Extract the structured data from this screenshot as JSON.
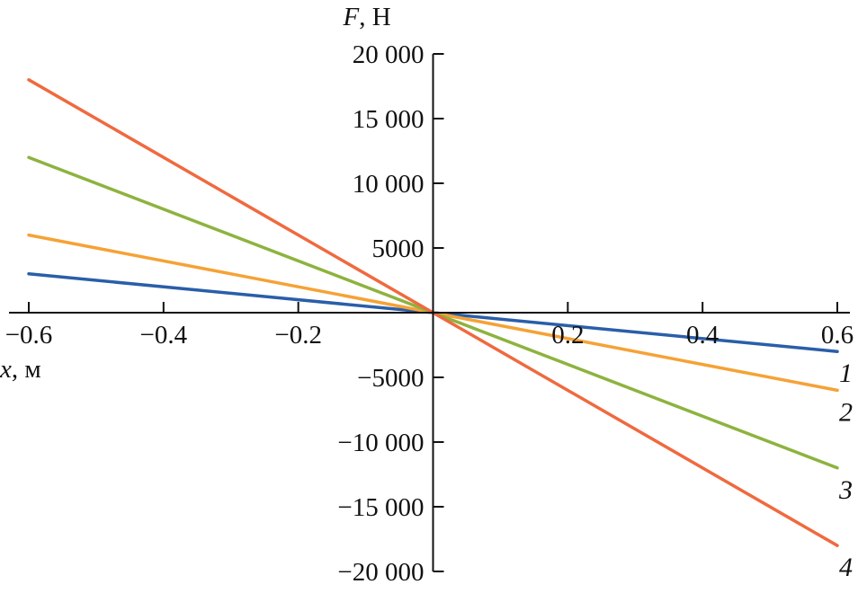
{
  "chart_data": {
    "type": "line",
    "xlabel": {
      "var": "x",
      "unit": ", м"
    },
    "ylabel": {
      "var": "F",
      "unit": ", Н"
    },
    "xlim": [
      -0.6,
      0.6
    ],
    "ylim": [
      -20000,
      20000
    ],
    "x_ticks": [
      -0.6,
      -0.4,
      -0.2,
      0.2,
      0.4,
      0.6
    ],
    "x_tick_labels": [
      "−0.6",
      "−0.4",
      "−0.2",
      "0.2",
      "0.4",
      "0.6"
    ],
    "y_ticks": [
      20000,
      15000,
      10000,
      5000,
      -5000,
      -10000,
      -15000,
      -20000
    ],
    "y_tick_labels": [
      "20 000",
      "15 000",
      "10 000",
      "5000",
      "−5000",
      "−10 000",
      "−15 000",
      "−20 000"
    ],
    "grid": false,
    "series": [
      {
        "name": "1",
        "color": "#2a5ea8",
        "x": [
          -0.6,
          0.6
        ],
        "values": [
          3000,
          -3000
        ]
      },
      {
        "name": "2",
        "color": "#f5a236",
        "x": [
          -0.6,
          0.6
        ],
        "values": [
          6000,
          -6000
        ]
      },
      {
        "name": "3",
        "color": "#8db33f",
        "x": [
          -0.6,
          0.6
        ],
        "values": [
          12000,
          -12000
        ]
      },
      {
        "name": "4",
        "color": "#ef6a3f",
        "x": [
          -0.6,
          0.6
        ],
        "values": [
          18000,
          -18000
        ]
      }
    ]
  }
}
